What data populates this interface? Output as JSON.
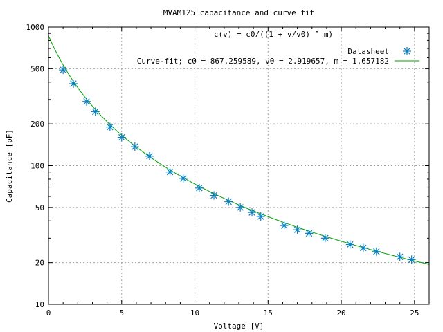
{
  "chart_data": {
    "type": "scatter",
    "title": "MVAM125 capacitance and curve fit",
    "annotation": "c(v) =  c0/((1 + v/v0) ^ m)",
    "xlabel": "Voltage [V]",
    "ylabel": "Capacitance [pF]",
    "xlim": [
      0,
      26
    ],
    "ylim": [
      10,
      1000
    ],
    "yscale": "log",
    "grid": true,
    "legend_position": "top-right",
    "x_ticks": [
      0,
      5,
      10,
      15,
      20,
      25
    ],
    "y_ticks": [
      10,
      20,
      50,
      100,
      200,
      500,
      1000
    ],
    "series": [
      {
        "name": "Datasheet",
        "kind": "points",
        "color": "#0a7fc2",
        "x": [
          1.0,
          1.7,
          2.6,
          3.2,
          4.2,
          5.0,
          5.9,
          6.9,
          8.3,
          9.2,
          10.3,
          11.3,
          12.3,
          13.1,
          13.9,
          14.5,
          16.1,
          17.0,
          17.8,
          18.9,
          20.6,
          21.5,
          22.4,
          24.0,
          24.8
        ],
        "y": [
          490,
          390,
          290,
          245,
          190,
          160,
          137,
          117,
          90,
          81,
          69,
          61,
          55,
          50,
          46,
          43,
          37,
          34.5,
          32.5,
          30,
          27,
          25.5,
          24,
          22,
          21
        ]
      },
      {
        "name": "Curve-fit; c0 = 867.259589, v0 = 2.919657, m = 1.657182",
        "kind": "line",
        "color": "#00a000",
        "function": {
          "c0": 867.259589,
          "v0": 2.919657,
          "m": 1.657182
        }
      }
    ]
  }
}
